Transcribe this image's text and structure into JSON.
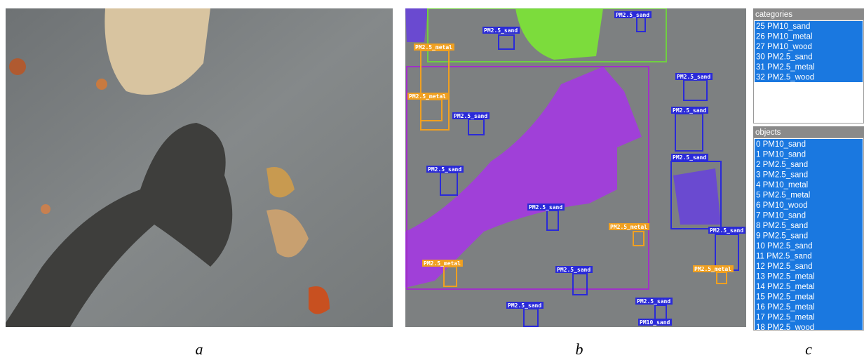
{
  "panels": {
    "a": {
      "caption": "a"
    },
    "b": {
      "caption": "b",
      "detections": [
        {
          "label": "PM2.5_sand",
          "color": "#2a2ad8"
        },
        {
          "label": "PM2.5_sand",
          "color": "#2a2ad8"
        },
        {
          "label": "PM2.5_metal",
          "color": "#f0a020"
        },
        {
          "label": "PM2.5_metal",
          "color": "#f0a020"
        },
        {
          "label": "PM2.5_sand",
          "color": "#2a2ad8"
        },
        {
          "label": "PM2.5_sand",
          "color": "#2a2ad8"
        },
        {
          "label": "PM2.5_sand",
          "color": "#2a2ad8"
        },
        {
          "label": "PM2.5_sand",
          "color": "#2a2ad8"
        },
        {
          "label": "PM2.5_sand",
          "color": "#2a2ad8"
        },
        {
          "label": "PM2.5_sand",
          "color": "#2a2ad8"
        },
        {
          "label": "PM2.5_metal",
          "color": "#f0a020"
        },
        {
          "label": "PM2.5_sand",
          "color": "#2a2ad8"
        },
        {
          "label": "PM2.5_metal",
          "color": "#f0a020"
        },
        {
          "label": "PM2.5_sand",
          "color": "#2a2ad8"
        },
        {
          "label": "PM2.5_metal",
          "color": "#f0a020"
        },
        {
          "label": "PM2.5_sand",
          "color": "#2a2ad8"
        },
        {
          "label": "PM2.5_sand",
          "color": "#2a2ad8"
        },
        {
          "label": "PM10_sand",
          "color": "#2a2ad8"
        }
      ]
    },
    "c": {
      "caption": "c",
      "categories": {
        "title": "categories",
        "items": [
          "25 PM10_sand",
          "26 PM10_metal",
          "27 PM10_wood",
          "30 PM2.5_sand",
          "31 PM2.5_metal",
          "32 PM2.5_wood"
        ]
      },
      "objects": {
        "title": "objects",
        "items": [
          "0 PM10_sand",
          "1 PM10_sand",
          "2 PM2.5_sand",
          "3 PM2.5_sand",
          "4 PM10_metal",
          "5 PM2.5_metal",
          "6 PM10_wood",
          "7 PM10_sand",
          "8 PM2.5_sand",
          "9 PM2.5_sand",
          "10 PM2.5_sand",
          "11 PM2.5_sand",
          "12 PM2.5_sand",
          "13 PM2.5_metal",
          "14 PM2.5_metal",
          "15 PM2.5_metal",
          "16 PM2.5_metal",
          "17 PM2.5_metal",
          "18 PM2.5_wood"
        ]
      }
    }
  }
}
